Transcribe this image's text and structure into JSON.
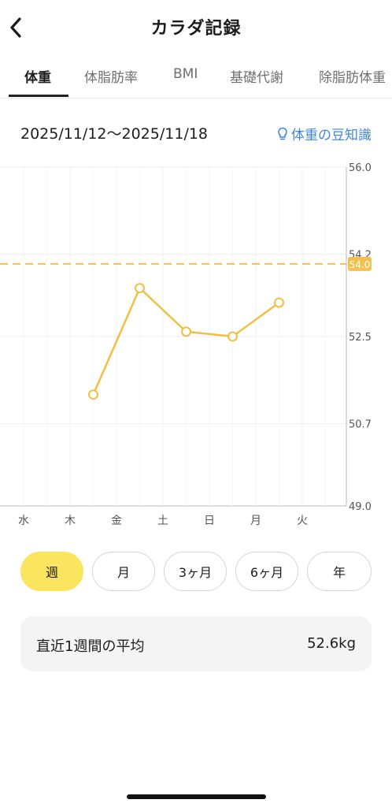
{
  "header": {
    "title": "カラダ記録",
    "back_icon": "chevron-left-icon"
  },
  "tabs": [
    {
      "label": "体重",
      "active": true
    },
    {
      "label": "体脂肪率",
      "active": false
    },
    {
      "label": "BMI",
      "active": false
    },
    {
      "label": "基礎代謝",
      "active": false
    },
    {
      "label": "除脂肪体重",
      "active": false
    }
  ],
  "date_range": "2025/11/12〜2025/11/18",
  "tips_link": {
    "label": "体重の豆知識",
    "icon": "lightbulb-icon",
    "color": "#3d86e0"
  },
  "chart_data": {
    "type": "line",
    "categories": [
      "水",
      "木",
      "金",
      "土",
      "日",
      "月",
      "火"
    ],
    "y_ticks": [
      "56.0",
      "54.2",
      "52.5",
      "50.7",
      "49.0"
    ],
    "ylim": [
      49.0,
      56.0
    ],
    "goal": {
      "value": 54.0,
      "label": "54.0",
      "color": "#f2c14e"
    },
    "series": [
      {
        "color": "#f0c042",
        "points": [
          {
            "x": "木",
            "y": 51.3
          },
          {
            "x": "金",
            "y": 53.5
          },
          {
            "x": "土",
            "y": 52.6
          },
          {
            "x": "日",
            "y": 52.5
          },
          {
            "x": "月",
            "y": 53.2
          }
        ]
      }
    ],
    "grid": true
  },
  "period_buttons": [
    {
      "label": "週",
      "active": true
    },
    {
      "label": "月",
      "active": false
    },
    {
      "label": "3ヶ月",
      "active": false
    },
    {
      "label": "6ヶ月",
      "active": false
    },
    {
      "label": "年",
      "active": false
    }
  ],
  "average": {
    "label": "直近1週間の平均",
    "value": "52.6kg"
  }
}
